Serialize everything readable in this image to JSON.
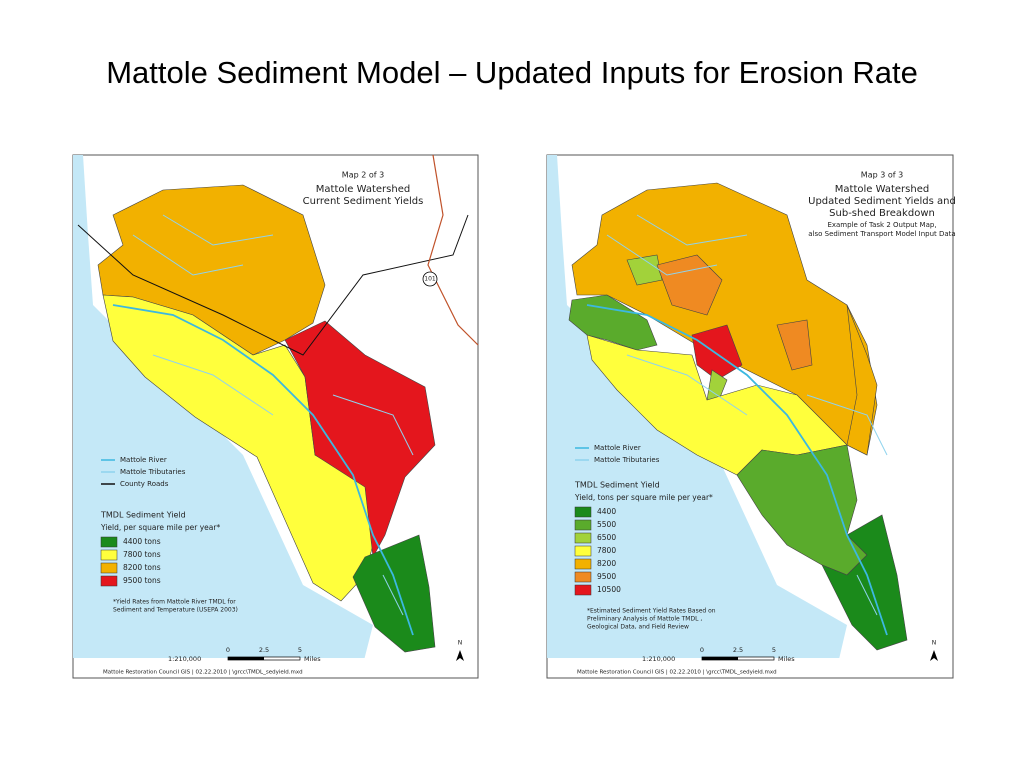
{
  "title": "Mattole Sediment Model – Updated Inputs for Erosion Rate",
  "maps": [
    {
      "map_number": "Map 2 of 3",
      "heading": [
        "Mattole Watershed",
        "Current Sediment Yields"
      ],
      "subheading": [],
      "road_label": "101",
      "lines": [
        {
          "label": "Mattole River",
          "color": "#3cb8e0"
        },
        {
          "label": "Mattole Tributaries",
          "color": "#8fd3ee"
        },
        {
          "label": "County Roads",
          "color": "#111111"
        }
      ],
      "legend_title": "TMDL Sediment Yield",
      "legend_subtitle": "Yield, per square mile per year*",
      "classes": [
        {
          "label": "4400 tons",
          "color": "#1b8a1b"
        },
        {
          "label": "7800 tons",
          "color": "#ffff3c"
        },
        {
          "label": "8200 tons",
          "color": "#f2b100"
        },
        {
          "label": "9500 tons",
          "color": "#e4161d"
        }
      ],
      "note": [
        "*Yield Rates from Mattole River TMDL for",
        "Sediment and Temperature (USEPA 2003)"
      ],
      "scale": "1:210,000",
      "scale_ticks": [
        "0",
        "2.5",
        "5"
      ],
      "scale_unit": "Miles",
      "north": "N",
      "footer": "Mattole Restoration Council GIS  |  02.22.2010  |  \\grcc\\TMDL_sedyield.mxd"
    },
    {
      "map_number": "Map 3 of 3",
      "heading": [
        "Mattole Watershed",
        "Updated Sediment Yields and",
        "Sub-shed Breakdown"
      ],
      "subheading": [
        "Example of Task 2 Output Map,",
        "also Sediment Transport Model Input Data"
      ],
      "road_label": "",
      "lines": [
        {
          "label": "Mattole River",
          "color": "#3cb8e0"
        },
        {
          "label": "Mattole Tributaries",
          "color": "#8fd3ee"
        }
      ],
      "legend_title": "TMDL Sediment Yield",
      "legend_subtitle": "Yield, tons per square mile per year*",
      "classes": [
        {
          "label": "4400",
          "color": "#1b8a1b"
        },
        {
          "label": "5500",
          "color": "#5aab2c"
        },
        {
          "label": "6500",
          "color": "#a2d23a"
        },
        {
          "label": "7800",
          "color": "#ffff3c"
        },
        {
          "label": "8200",
          "color": "#f2b100"
        },
        {
          "label": "9500",
          "color": "#ef8a22"
        },
        {
          "label": "10500",
          "color": "#e4161d"
        }
      ],
      "note": [
        "*Estimated Sediment Yield Rates Based on",
        "Preliminary Analysis of Mattole TMDL ,",
        "Geological Data, and Field Review"
      ],
      "scale": "1:210,000",
      "scale_ticks": [
        "0",
        "2.5",
        "5"
      ],
      "scale_unit": "Miles",
      "north": "N",
      "footer": "Mattole Restoration Council GIS  |  02.22.2010  |  \\grcc\\TMDL_sedyield.mxd"
    }
  ]
}
